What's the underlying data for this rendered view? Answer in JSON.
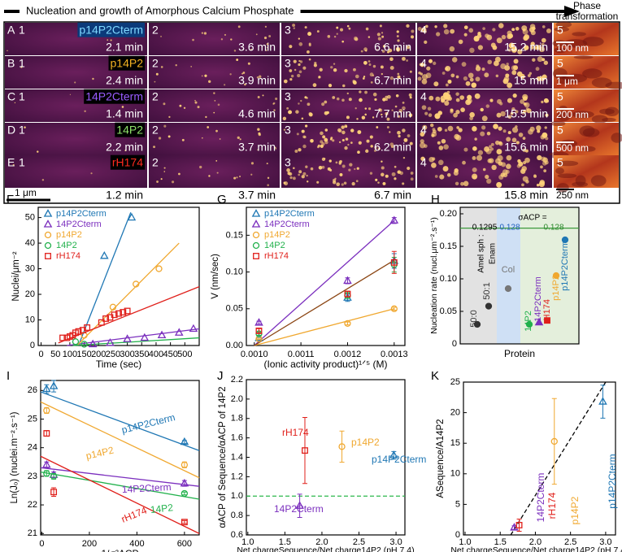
{
  "header": {
    "title": "Nucleation and growth of Amorphous Calcium Phosphate",
    "phase": [
      "Phase",
      "transformation"
    ]
  },
  "micrographs": {
    "scale_bar": "1 μm",
    "rows": [
      {
        "letter": "A",
        "protein": "p14P2Cterm",
        "label_color": "#7fd8ff",
        "label_bg": "#0b3a7a",
        "frames": [
          "1",
          "2",
          "3",
          "4",
          "5"
        ],
        "times": [
          "2.1 min",
          "3.6 min",
          "6.6 min",
          "15.2 min"
        ],
        "scale": "100 nm"
      },
      {
        "letter": "B",
        "protein": "p14P2",
        "label_color": "#f4b222",
        "label_bg": "#000000",
        "frames": [
          "1",
          "2",
          "3",
          "4",
          "5"
        ],
        "times": [
          "2.4 min",
          "3.9 min",
          "6.7 min",
          "15 min"
        ],
        "scale": "1 μm"
      },
      {
        "letter": "C",
        "protein": "14P2Cterm",
        "label_color": "#9a5cff",
        "label_bg": "#000000",
        "frames": [
          "1",
          "2",
          "3",
          "4",
          "5"
        ],
        "times": [
          "1.4 min",
          "4.6 min",
          "7.7 min",
          "15.5 min"
        ],
        "scale": "200 nm"
      },
      {
        "letter": "D",
        "protein": "14P2",
        "label_color": "#8fe36a",
        "label_bg": "#000000",
        "frames": [
          "1",
          "2",
          "3",
          "4",
          "5"
        ],
        "times": [
          "2.2 min",
          "3.7 min",
          "6.2 min",
          "15.6 min"
        ],
        "scale": "500 nm"
      },
      {
        "letter": "E",
        "protein": "rH174",
        "label_color": "#ff2a1f",
        "label_bg": "#000000",
        "frames": [
          "1",
          "2",
          "3",
          "4",
          "5"
        ],
        "times": [
          "1.2 min",
          "3.7 min",
          "6.7 min",
          "15.8 min"
        ],
        "scale": "250 nm"
      }
    ]
  },
  "chart_data": [
    {
      "type": "scatter",
      "panel": "F",
      "x_label": "Time (sec)",
      "y_label": "Nuclei/μm⁻²",
      "xlim": [
        -10,
        550
      ],
      "ylim": [
        0,
        54
      ],
      "xticks": [
        0,
        50,
        100,
        150,
        200,
        250,
        300,
        350,
        400,
        450,
        500
      ],
      "yticks": [
        0,
        10,
        20,
        30,
        40,
        50
      ],
      "legend": "upper left",
      "series": [
        {
          "name": "p14P2Cterm",
          "color": "#1f77b4",
          "marker": "triangle",
          "x": [
            220,
            315
          ],
          "values": [
            35,
            50
          ]
        },
        {
          "name": "14P2Cterm",
          "color": "#7b2fbe",
          "marker": "triangle",
          "x": [
            180,
            240,
            300,
            360,
            420,
            480,
            530
          ],
          "values": [
            0.5,
            1,
            2.5,
            3,
            4,
            5,
            6.5
          ]
        },
        {
          "name": "p14P2",
          "color": "#f0a830",
          "marker": "circle",
          "x": [
            150,
            250,
            330,
            410
          ],
          "values": [
            4,
            15,
            24,
            30
          ]
        },
        {
          "name": "14P2",
          "color": "#22b14c",
          "marker": "circle",
          "x": [
            120,
            150
          ],
          "values": [
            1.5,
            0.5
          ]
        },
        {
          "name": "rH174",
          "color": "#e0201b",
          "marker": "square",
          "x": [
            75,
            90,
            100,
            110,
            120,
            130,
            145,
            160,
            210,
            225,
            240,
            255,
            270,
            285,
            300
          ],
          "values": [
            3,
            3,
            3.5,
            4,
            5,
            5.5,
            6,
            7,
            9,
            10.5,
            11,
            12,
            12.5,
            13,
            13.5
          ]
        }
      ],
      "fit_lines": [
        {
          "color": "#1f77b4",
          "x": [
            130,
            312
          ],
          "y": [
            0,
            52
          ]
        },
        {
          "color": "#7b2fbe",
          "x": [
            90,
            550
          ],
          "y": [
            0,
            6.5
          ]
        },
        {
          "color": "#f0a830",
          "x": [
            125,
            480
          ],
          "y": [
            0,
            40
          ]
        },
        {
          "color": "#22b14c",
          "x": [
            110,
            550
          ],
          "y": [
            0,
            3
          ]
        },
        {
          "color": "#e0201b",
          "x": [
            60,
            550
          ],
          "y": [
            1,
            23
          ]
        }
      ]
    },
    {
      "type": "scatter",
      "panel": "G",
      "x_label": "(Ionic activity product)¹ᐟ⁵ (M)",
      "y_label": "V (nm/sec)",
      "xlim": [
        0.000983,
        0.001323
      ],
      "ylim": [
        0,
        0.188
      ],
      "xticks": [
        {
          "value": 0.001,
          "label": "0.0010"
        },
        0.0011,
        0.0012,
        0.0013
      ],
      "yticks": [
        {
          "value": 0,
          "label": "0.00"
        },
        0.05,
        {
          "value": 0.1,
          "label": "0.10"
        },
        0.15
      ],
      "legend": "upper left",
      "series": [
        {
          "name": "p14P2Cterm",
          "color": "#1f77b4",
          "marker": "triangle",
          "x": [
            0.00101,
            0.0012,
            0.0013
          ],
          "values": [
            0.01,
            0.065,
            0.115
          ],
          "errors": [
            0.002,
            0.005,
            0.01
          ]
        },
        {
          "name": "14P2Cterm",
          "color": "#7b2fbe",
          "marker": "triangle",
          "x": [
            0.00101,
            0.0012,
            0.0013
          ],
          "values": [
            0.031,
            0.088,
            0.17
          ],
          "errors": [
            0.002,
            0.004,
            0.004
          ]
        },
        {
          "name": "p14P2",
          "color": "#f0a830",
          "marker": "circle",
          "x": [
            0.00101,
            0.0012,
            0.0013
          ],
          "values": [
            0.009,
            0.03,
            0.05
          ],
          "errors": [
            0.001,
            0.002,
            0.002
          ]
        },
        {
          "name": "14P2",
          "color": "#22b14c",
          "marker": "circle",
          "x": [
            0.00101,
            0.0012,
            0.0013
          ],
          "values": [
            0.016,
            0.068,
            0.11
          ],
          "errors": [
            0.002,
            0.004,
            0.01
          ]
        },
        {
          "name": "rH174",
          "color": "#e0201b",
          "marker": "square",
          "x": [
            0.00101,
            0.0012,
            0.0013
          ],
          "values": [
            0.02,
            0.07,
            0.113
          ],
          "errors": [
            0.003,
            0.004,
            0.015
          ]
        }
      ],
      "fit_lines": [
        {
          "color": "#7b2fbe",
          "x": [
            0.001,
            0.0013
          ],
          "y": [
            0,
            0.17
          ]
        },
        {
          "color": "#f0a830",
          "x": [
            0.001,
            0.0013
          ],
          "y": [
            0,
            0.05
          ]
        },
        {
          "color": "#8b4513",
          "x": [
            0.001,
            0.0013
          ],
          "y": [
            0,
            0.116
          ]
        }
      ]
    },
    {
      "type": "dot",
      "panel": "H",
      "x_label": "Protein",
      "y_label": "Nucleation rate (nucl.μm⁻².s⁻¹)",
      "ylim": [
        0,
        0.21
      ],
      "yticks": [
        0,
        0.05,
        {
          "value": 0.1,
          "label": "0.10"
        },
        0.15,
        {
          "value": 0.2,
          "label": "0.20"
        }
      ],
      "categories": [
        "50:0",
        "50:1",
        "Col",
        "14P2",
        "14P2Cterm",
        "rH174",
        "p14P2",
        "p14P2Cterm"
      ],
      "values": [
        0.03,
        0.058,
        0.085,
        0.03,
        0.033,
        0.036,
        0.105,
        0.16
      ],
      "colors": [
        "#333333",
        "#333333",
        "#777777",
        "#22b14c",
        "#7b2fbe",
        "#e0201b",
        "#f0a830",
        "#1f77b4"
      ],
      "markers": [
        "circle",
        "circle",
        "circle",
        "circle",
        "triangle",
        "square",
        "circle",
        "circle"
      ],
      "filled": true,
      "ref_line": {
        "value": 0.178,
        "color": "#3c9a3c"
      },
      "annotations": [
        "Amel sph :",
        "Enam",
        "σACP =",
        "0.1295",
        "0.128",
        "0.128"
      ],
      "annotation_colors": [
        "#000000",
        "#000000",
        "#000000",
        "#000000",
        "#1f5fbf",
        "#2e8b2e"
      ]
    },
    {
      "type": "scatter",
      "panel": "I",
      "x_label": "1/σ²ACP",
      "y_label": "Ln(Jₒ) (nuclei.m⁻².s⁻¹)",
      "xlim": [
        -5,
        662
      ],
      "ylim": [
        20.95,
        26.35
      ],
      "xticks": [
        0,
        200,
        400,
        600
      ],
      "yticks": [
        21,
        22,
        23,
        24,
        25,
        26
      ],
      "series_labels": true,
      "series": [
        {
          "name": "p14P2Cterm",
          "color": "#1f77b4",
          "marker": "triangle",
          "x": [
            20,
            50,
            600
          ],
          "values": [
            26.05,
            26.15,
            24.2
          ],
          "errors": [
            0.15,
            0.2,
            0.05
          ]
        },
        {
          "name": "p14P2",
          "color": "#f0a830",
          "marker": "circle",
          "x": [
            20,
            600
          ],
          "values": [
            25.3,
            23.4
          ],
          "errors": [
            0.1,
            0.1
          ]
        },
        {
          "name": "14P2Cterm",
          "color": "#7b2fbe",
          "marker": "triangle",
          "x": [
            20,
            50,
            600
          ],
          "values": [
            23.4,
            23.05,
            22.75
          ],
          "errors": [
            0.1,
            0.1,
            0.1
          ]
        },
        {
          "name": "14P2",
          "color": "#22b14c",
          "marker": "circle",
          "x": [
            20,
            50,
            600
          ],
          "values": [
            23.1,
            23.0,
            22.4
          ],
          "errors": [
            0.1,
            0.1,
            0.05
          ]
        },
        {
          "name": "rH174",
          "color": "#e0201b",
          "marker": "square",
          "x": [
            20,
            50,
            600
          ],
          "values": [
            24.5,
            22.45,
            21.4
          ],
          "errors": [
            0.1,
            0.15,
            0.05
          ]
        }
      ],
      "fit_lines": [
        {
          "color": "#1f77b4",
          "x": [
            -5,
            662
          ],
          "y": [
            25.95,
            23.9
          ]
        },
        {
          "color": "#f0a830",
          "x": [
            -5,
            662
          ],
          "y": [
            25.6,
            22.95
          ]
        },
        {
          "color": "#7b2fbe",
          "x": [
            -5,
            662
          ],
          "y": [
            23.3,
            22.65
          ]
        },
        {
          "color": "#22b14c",
          "x": [
            -5,
            662
          ],
          "y": [
            23.15,
            22.2
          ]
        },
        {
          "color": "#e0201b",
          "x": [
            -5,
            662
          ],
          "y": [
            23.7,
            21.0
          ]
        }
      ]
    },
    {
      "type": "scatter",
      "panel": "J",
      "x_label": "Net chargeSequence/Net charge14P2 (pH 7.4)",
      "y_label": "αACP of Sequence/αACP of 14P2",
      "xlim": [
        0.98,
        3.12
      ],
      "ylim": [
        0.6,
        2.2
      ],
      "xticks": [
        {
          "value": 1,
          "label": "1.0"
        },
        1.5,
        {
          "value": 2,
          "label": "2.0"
        },
        2.5,
        {
          "value": 3,
          "label": "3.0"
        }
      ],
      "yticks": [
        0.6,
        0.8,
        {
          "value": 1,
          "label": "1.0"
        },
        1.2,
        1.4,
        1.6,
        1.8,
        {
          "value": 2,
          "label": "2.0"
        },
        2.2
      ],
      "series_labels": true,
      "ref_line": {
        "value": 1.0,
        "color": "#2db84c",
        "dashed": true
      },
      "series": [
        {
          "name": "14P2Cterm",
          "color": "#7b2fbe",
          "marker": "triangle",
          "x": [
            1.7
          ],
          "values": [
            0.9
          ],
          "errors": [
            0.12
          ]
        },
        {
          "name": "rH174",
          "color": "#e0201b",
          "marker": "square",
          "x": [
            1.77
          ],
          "values": [
            1.47
          ],
          "errors": [
            0.34
          ]
        },
        {
          "name": "p14P2",
          "color": "#f0a830",
          "marker": "circle",
          "x": [
            2.27
          ],
          "values": [
            1.51
          ],
          "errors": [
            0.16
          ]
        },
        {
          "name": "p14P2Cterm",
          "color": "#1f77b4",
          "marker": "triangle",
          "x": [
            2.97
          ],
          "values": [
            1.42
          ],
          "errors": [
            0.04
          ]
        }
      ]
    },
    {
      "type": "scatter",
      "panel": "K",
      "x_label": "Net chargeSequence/Net charge14P2 (pH 7.4)",
      "y_label": "ASequence/A14P2",
      "xlim": [
        0.977,
        3.14
      ],
      "ylim": [
        0,
        25
      ],
      "xticks": [
        {
          "value": 1,
          "label": "1.0"
        },
        1.5,
        {
          "value": 2,
          "label": "2.0"
        },
        2.5,
        {
          "value": 3,
          "label": "3.0"
        }
      ],
      "yticks": [
        0,
        5,
        10,
        15,
        20,
        25
      ],
      "series_labels": true,
      "series": [
        {
          "name": "14P2Cterm",
          "color": "#7b2fbe",
          "marker": "triangle",
          "x": [
            1.7
          ],
          "values": [
            1.2
          ],
          "errors": [
            0.3
          ]
        },
        {
          "name": "rH174",
          "color": "#e0201b",
          "marker": "square",
          "x": [
            1.77
          ],
          "values": [
            1.6
          ],
          "errors": [
            1
          ]
        },
        {
          "name": "p14P2",
          "color": "#f0a830",
          "marker": "circle",
          "x": [
            2.27
          ],
          "values": [
            15.3
          ],
          "errors": [
            7
          ]
        },
        {
          "name": "p14P2Cterm",
          "color": "#1f77b4",
          "marker": "triangle",
          "x": [
            2.96
          ],
          "values": [
            21.8
          ],
          "errors": [
            2.7
          ]
        }
      ],
      "fit_lines": [
        {
          "color": "#000000",
          "x": [
            1.65,
            3
          ],
          "y": [
            0,
            25
          ],
          "dashed": true
        }
      ]
    }
  ]
}
